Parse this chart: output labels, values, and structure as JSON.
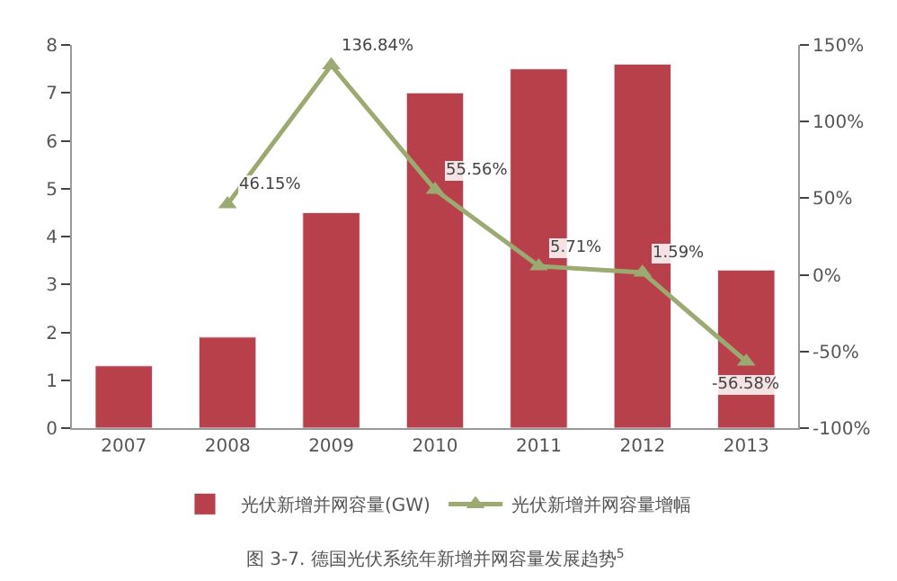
{
  "chart_data": {
    "type": "bar",
    "categories": [
      "2007",
      "2008",
      "2009",
      "2010",
      "2011",
      "2012",
      "2013"
    ],
    "series": [
      {
        "name": "光伏新增并网容量(GW)",
        "color": "#b8404a",
        "values": [
          1.3,
          1.9,
          4.5,
          7.0,
          7.5,
          7.6,
          3.3
        ]
      },
      {
        "name": "光伏新增并网容量增幅",
        "type": "line",
        "axis": "y2",
        "color": "#9aaa70",
        "marker": "triangle",
        "values": [
          null,
          46.15,
          136.84,
          55.56,
          5.71,
          1.59,
          -56.58
        ],
        "value_labels": [
          null,
          "46.15%",
          "136.84%",
          "55.56%",
          "5.71%",
          "1.59%",
          "-56.58%"
        ]
      }
    ],
    "ylim": [
      0,
      8
    ],
    "yticks": [
      0,
      1,
      2,
      3,
      4,
      5,
      6,
      7,
      8
    ],
    "y2lim": [
      -100,
      150
    ],
    "y2ticks": [
      {
        "value": -100,
        "label": "-100%"
      },
      {
        "value": -50,
        "label": "-50%"
      },
      {
        "value": 0,
        "label": "0%"
      },
      {
        "value": 50,
        "label": "50%"
      },
      {
        "value": 100,
        "label": "100%"
      },
      {
        "value": 150,
        "label": "150%"
      }
    ],
    "legend": "bottom",
    "annotations": [
      "图 3-7. 德国光伏系统年新增并网容量发展趋势$^{5}$"
    ]
  }
}
